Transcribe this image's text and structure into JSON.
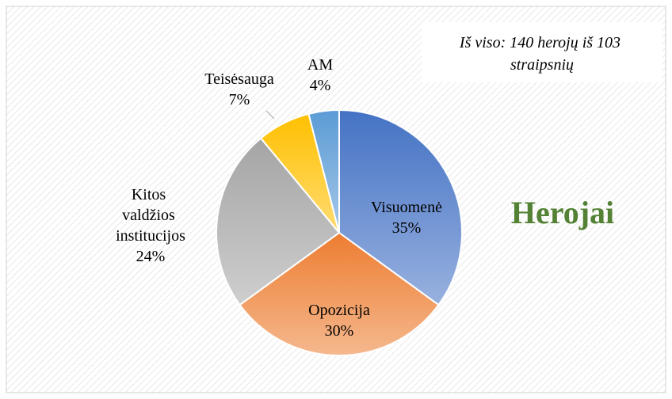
{
  "chart_data": {
    "type": "pie",
    "title": "Herojai",
    "annotation": "Iš viso: 140 herojų iš 103 straipsnių",
    "categories": [
      "Visuomenė",
      "Opozicija",
      "Kitos valdžios institucijos",
      "Teisėsauga",
      "AM"
    ],
    "values": [
      35,
      30,
      24,
      7,
      4
    ],
    "value_labels": [
      "35%",
      "30%",
      "24%",
      "7%",
      "4%"
    ],
    "colors": [
      "#4472c4",
      "#ed7d31",
      "#a5a5a5",
      "#ffc000",
      "#5b9bd5"
    ]
  }
}
